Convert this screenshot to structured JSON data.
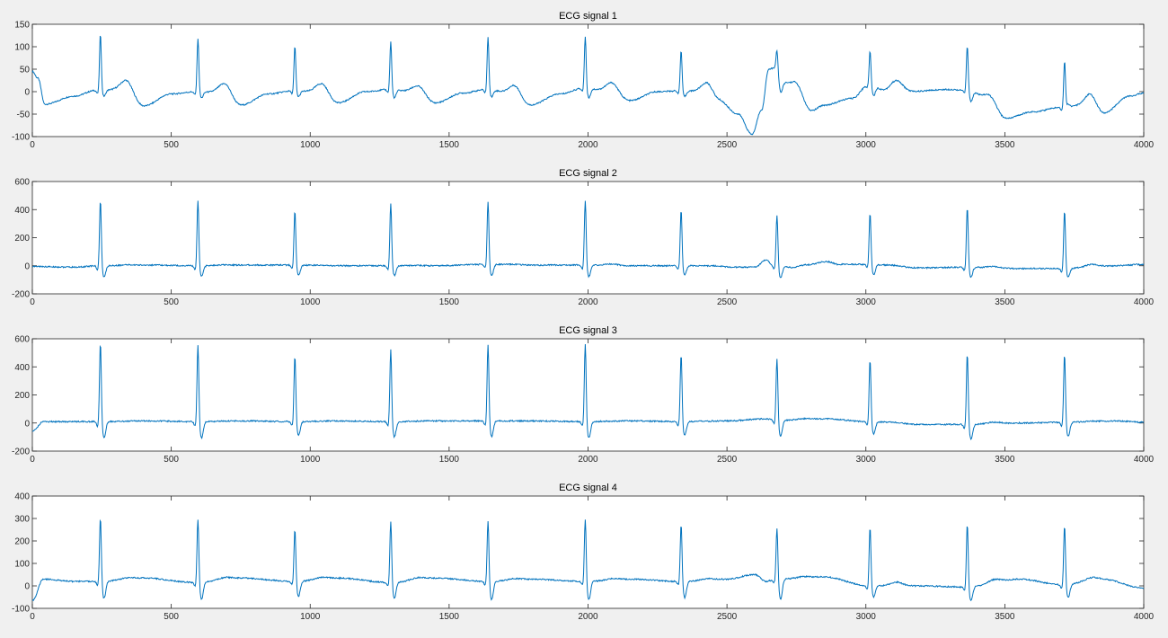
{
  "figure": {
    "background": "#f0f0f0",
    "axes_color": "#262626"
  },
  "chart_data": [
    {
      "type": "line",
      "title": "ECG signal 1",
      "xlim": [
        0,
        4000
      ],
      "ylim": [
        -100,
        150
      ],
      "xticks": [
        0,
        500,
        1000,
        1500,
        2000,
        2500,
        3000,
        3500,
        4000
      ],
      "yticks": [
        -100,
        -50,
        0,
        50,
        100,
        150
      ],
      "color": "#0072bd",
      "grid": false,
      "series": [
        {
          "beats": [
            {
              "x": 245,
              "r": 130,
              "s": -12,
              "t": 42,
              "base": 3
            },
            {
              "x": 596,
              "r": 120,
              "s": -15,
              "t": 38,
              "base": 0
            },
            {
              "x": 945,
              "r": 102,
              "s": -12,
              "t": 38,
              "base": 2
            },
            {
              "x": 1290,
              "r": 113,
              "s": -15,
              "t": 33,
              "base": 5
            },
            {
              "x": 1640,
              "r": 122,
              "s": -12,
              "t": 40,
              "base": 5
            },
            {
              "x": 1990,
              "r": 125,
              "s": -15,
              "t": 45,
              "base": 8
            },
            {
              "x": 2335,
              "r": 93,
              "s": -12,
              "t": 40,
              "base": 2
            },
            {
              "x": 2680,
              "r": 98,
              "s": 25,
              "t": 68,
              "base": 55
            },
            {
              "x": 3015,
              "r": 93,
              "s": -8,
              "t": 60,
              "base": 15
            },
            {
              "x": 3365,
              "r": 105,
              "s": -22,
              "t": 20,
              "base": 3
            },
            {
              "x": 3715,
              "r": 68,
              "s": -28,
              "t": 12,
              "base": -35
            }
          ],
          "baseline": [
            [
              0,
              45
            ],
            [
              20,
              30
            ],
            [
              45,
              -28
            ],
            [
              150,
              -10
            ],
            [
              230,
              3
            ],
            [
              330,
              5
            ],
            [
              400,
              -32
            ],
            [
              500,
              -5
            ],
            [
              590,
              0
            ],
            [
              690,
              -3
            ],
            [
              750,
              -30
            ],
            [
              850,
              -5
            ],
            [
              940,
              2
            ],
            [
              1040,
              -2
            ],
            [
              1100,
              -25
            ],
            [
              1200,
              0
            ],
            [
              1285,
              5
            ],
            [
              1390,
              -3
            ],
            [
              1450,
              -25
            ],
            [
              1550,
              -3
            ],
            [
              1635,
              5
            ],
            [
              1730,
              -5
            ],
            [
              1790,
              -30
            ],
            [
              1900,
              -5
            ],
            [
              1985,
              8
            ],
            [
              2080,
              0
            ],
            [
              2150,
              -20
            ],
            [
              2250,
              0
            ],
            [
              2330,
              2
            ],
            [
              2420,
              0
            ],
            [
              2470,
              -20
            ],
            [
              2540,
              -50
            ],
            [
              2590,
              -95
            ],
            [
              2625,
              -40
            ],
            [
              2650,
              50
            ],
            [
              2675,
              55
            ],
            [
              2700,
              20
            ],
            [
              2740,
              20
            ],
            [
              2800,
              -45
            ],
            [
              2850,
              -30
            ],
            [
              2950,
              -15
            ],
            [
              3010,
              15
            ],
            [
              3080,
              0
            ],
            [
              3150,
              0
            ],
            [
              3300,
              5
            ],
            [
              3360,
              3
            ],
            [
              3430,
              -10
            ],
            [
              3500,
              -60
            ],
            [
              3600,
              -45
            ],
            [
              3700,
              -35
            ],
            [
              3800,
              -30
            ],
            [
              3850,
              -50
            ],
            [
              3950,
              -10
            ],
            [
              4000,
              -3
            ]
          ]
        }
      ]
    },
    {
      "type": "line",
      "title": "ECG signal 2",
      "xlim": [
        0,
        4000
      ],
      "ylim": [
        -200,
        600
      ],
      "xticks": [
        0,
        500,
        1000,
        1500,
        2000,
        2500,
        3000,
        3500,
        4000
      ],
      "yticks": [
        -200,
        0,
        200,
        400,
        600
      ],
      "color": "#0072bd",
      "grid": false,
      "series": [
        {
          "beats": [
            {
              "x": 245,
              "r": 470,
              "s": -90,
              "t": 5,
              "base": 0
            },
            {
              "x": 596,
              "r": 470,
              "s": -85,
              "t": 5,
              "base": 0
            },
            {
              "x": 945,
              "r": 395,
              "s": -75,
              "t": 8,
              "base": 5
            },
            {
              "x": 1290,
              "r": 450,
              "s": -75,
              "t": 5,
              "base": 0
            },
            {
              "x": 1640,
              "r": 460,
              "s": -80,
              "t": 15,
              "base": 10
            },
            {
              "x": 1990,
              "r": 470,
              "s": -85,
              "t": 25,
              "base": 5
            },
            {
              "x": 2335,
              "r": 405,
              "s": -70,
              "t": 0,
              "base": 0
            },
            {
              "x": 2680,
              "r": 365,
              "s": -90,
              "t": 40,
              "base": 0
            },
            {
              "x": 3015,
              "r": 385,
              "s": -70,
              "t": 20,
              "base": 10
            },
            {
              "x": 3365,
              "r": 425,
              "s": -90,
              "t": 10,
              "base": -10
            },
            {
              "x": 3715,
              "r": 400,
              "s": -85,
              "t": 15,
              "base": -20
            }
          ],
          "baseline": [
            [
              0,
              -5
            ],
            [
              150,
              -10
            ],
            [
              240,
              0
            ],
            [
              400,
              5
            ],
            [
              590,
              0
            ],
            [
              750,
              5
            ],
            [
              940,
              5
            ],
            [
              1100,
              0
            ],
            [
              1285,
              0
            ],
            [
              1450,
              0
            ],
            [
              1635,
              10
            ],
            [
              1800,
              5
            ],
            [
              1985,
              5
            ],
            [
              2150,
              0
            ],
            [
              2330,
              0
            ],
            [
              2450,
              0
            ],
            [
              2520,
              -10
            ],
            [
              2600,
              -10
            ],
            [
              2640,
              40
            ],
            [
              2670,
              0
            ],
            [
              2760,
              -20
            ],
            [
              2860,
              30
            ],
            [
              2900,
              10
            ],
            [
              3010,
              10
            ],
            [
              3200,
              -15
            ],
            [
              3360,
              -10
            ],
            [
              3550,
              -20
            ],
            [
              3710,
              -20
            ],
            [
              3900,
              0
            ],
            [
              4000,
              10
            ]
          ]
        }
      ]
    },
    {
      "type": "line",
      "title": "ECG signal 3",
      "xlim": [
        0,
        4000
      ],
      "ylim": [
        -200,
        600
      ],
      "xticks": [
        0,
        500,
        1000,
        1500,
        2000,
        2500,
        3000,
        3500,
        4000
      ],
      "yticks": [
        -200,
        0,
        200,
        400,
        600
      ],
      "color": "#0072bd",
      "grid": false,
      "series": [
        {
          "beats": [
            {
              "x": 245,
              "r": 580,
              "s": -120,
              "t": 10,
              "base": 10
            },
            {
              "x": 596,
              "r": 565,
              "s": -120,
              "t": 10,
              "base": 10
            },
            {
              "x": 945,
              "r": 490,
              "s": -100,
              "t": 10,
              "base": 10
            },
            {
              "x": 1290,
              "r": 535,
              "s": -110,
              "t": 10,
              "base": 10
            },
            {
              "x": 1640,
              "r": 565,
              "s": -115,
              "t": 10,
              "base": 10
            },
            {
              "x": 1990,
              "r": 575,
              "s": -120,
              "t": 10,
              "base": 10
            },
            {
              "x": 2335,
              "r": 500,
              "s": -100,
              "t": 10,
              "base": 10
            },
            {
              "x": 2680,
              "r": 470,
              "s": -110,
              "t": 30,
              "base": 20
            },
            {
              "x": 3015,
              "r": 460,
              "s": -90,
              "t": 20,
              "base": 10
            },
            {
              "x": 3365,
              "r": 505,
              "s": -125,
              "t": 10,
              "base": -10
            },
            {
              "x": 3715,
              "r": 500,
              "s": -105,
              "t": 10,
              "base": 5
            }
          ],
          "baseline": [
            [
              0,
              -60
            ],
            [
              40,
              10
            ],
            [
              240,
              10
            ],
            [
              400,
              15
            ],
            [
              590,
              10
            ],
            [
              750,
              15
            ],
            [
              940,
              10
            ],
            [
              1100,
              15
            ],
            [
              1285,
              10
            ],
            [
              1450,
              15
            ],
            [
              1635,
              15
            ],
            [
              1800,
              15
            ],
            [
              1985,
              10
            ],
            [
              2150,
              15
            ],
            [
              2330,
              10
            ],
            [
              2500,
              15
            ],
            [
              2640,
              30
            ],
            [
              2680,
              20
            ],
            [
              2850,
              30
            ],
            [
              3010,
              10
            ],
            [
              3200,
              -10
            ],
            [
              3360,
              -10
            ],
            [
              3550,
              0
            ],
            [
              3710,
              5
            ],
            [
              3900,
              15
            ],
            [
              4000,
              5
            ]
          ]
        }
      ]
    },
    {
      "type": "line",
      "title": "ECG signal 4",
      "xlim": [
        0,
        4000
      ],
      "ylim": [
        -100,
        400
      ],
      "xticks": [
        0,
        500,
        1000,
        1500,
        2000,
        2500,
        3000,
        3500,
        4000
      ],
      "yticks": [
        -100,
        0,
        100,
        200,
        300,
        400
      ],
      "color": "#0072bd",
      "grid": false,
      "series": [
        {
          "beats": [
            {
              "x": 245,
              "r": 310,
              "s": -65,
              "t": 30,
              "base": 20
            },
            {
              "x": 596,
              "r": 305,
              "s": -70,
              "t": 30,
              "base": 15
            },
            {
              "x": 945,
              "r": 260,
              "s": -55,
              "t": 35,
              "base": 20
            },
            {
              "x": 1290,
              "r": 295,
              "s": -65,
              "t": 30,
              "base": 15
            },
            {
              "x": 1640,
              "r": 295,
              "s": -70,
              "t": 30,
              "base": 20
            },
            {
              "x": 1990,
              "r": 305,
              "s": -70,
              "t": 30,
              "base": 20
            },
            {
              "x": 2335,
              "r": 280,
              "s": -60,
              "t": 30,
              "base": 20
            },
            {
              "x": 2680,
              "r": 265,
              "s": -70,
              "t": 40,
              "base": 30
            },
            {
              "x": 3015,
              "r": 265,
              "s": -55,
              "t": 30,
              "base": 0
            },
            {
              "x": 3365,
              "r": 280,
              "s": -75,
              "t": 20,
              "base": -5
            },
            {
              "x": 3715,
              "r": 275,
              "s": -60,
              "t": 25,
              "base": 5
            }
          ],
          "baseline": [
            [
              0,
              -65
            ],
            [
              40,
              30
            ],
            [
              150,
              20
            ],
            [
              240,
              20
            ],
            [
              400,
              35
            ],
            [
              590,
              15
            ],
            [
              750,
              35
            ],
            [
              940,
              20
            ],
            [
              1100,
              35
            ],
            [
              1285,
              15
            ],
            [
              1450,
              35
            ],
            [
              1635,
              20
            ],
            [
              1800,
              30
            ],
            [
              1985,
              20
            ],
            [
              2150,
              30
            ],
            [
              2330,
              20
            ],
            [
              2500,
              30
            ],
            [
              2600,
              50
            ],
            [
              2640,
              20
            ],
            [
              2680,
              30
            ],
            [
              2850,
              40
            ],
            [
              3010,
              0
            ],
            [
              3200,
              0
            ],
            [
              3360,
              -5
            ],
            [
              3550,
              30
            ],
            [
              3710,
              5
            ],
            [
              3850,
              30
            ],
            [
              4000,
              -10
            ]
          ]
        }
      ]
    }
  ]
}
